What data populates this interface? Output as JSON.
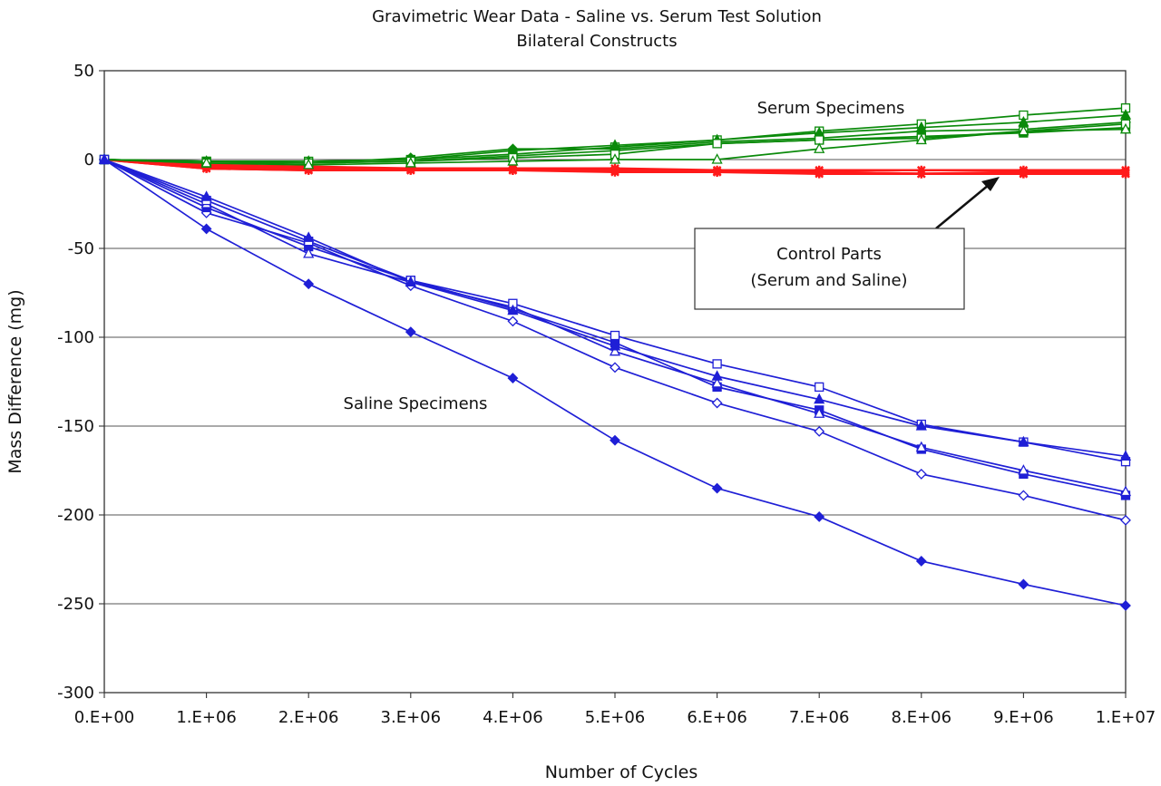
{
  "chart_data": {
    "type": "line",
    "title": "Gravimetric Wear Data - Saline vs. Serum Test Solution",
    "subtitle": "Bilateral Constructs",
    "xlabel": "Number of Cycles",
    "ylabel": "Mass Difference (mg)",
    "x": [
      0,
      1000000,
      2000000,
      3000000,
      4000000,
      5000000,
      6000000,
      7000000,
      8000000,
      9000000,
      10000000
    ],
    "xticks": [
      "0.E+00",
      "1.E+06",
      "2.E+06",
      "3.E+06",
      "4.E+06",
      "5.E+06",
      "6.E+06",
      "7.E+06",
      "8.E+06",
      "9.E+06",
      "1.E+07"
    ],
    "yticks": [
      "50",
      "0",
      "-50",
      "-100",
      "-150",
      "-200",
      "-250",
      "-300"
    ],
    "xlim": [
      0,
      10000000
    ],
    "ylim": [
      -300,
      50
    ],
    "grid": "horizontal",
    "annotations": {
      "serum": "Serum Specimens",
      "saline": "Saline Specimens",
      "control_line1": "Control Parts",
      "control_line2": "(Serum and Saline)"
    },
    "colors": {
      "saline": "#1f1fd6",
      "serum": "#0a8a0a",
      "control": "#ff1a1a"
    },
    "series": [
      {
        "group": "saline",
        "marker": "diamond-filled",
        "values": [
          0,
          -39,
          -70,
          -97,
          -123,
          -158,
          -185,
          -201,
          -226,
          -239,
          -251
        ]
      },
      {
        "group": "saline",
        "marker": "diamond-open",
        "values": [
          0,
          -30,
          -47,
          -71,
          -91,
          -117,
          -137,
          -153,
          -177,
          -189,
          -203
        ]
      },
      {
        "group": "saline",
        "marker": "square-filled",
        "values": [
          0,
          -27,
          -49,
          -68,
          -84,
          -103,
          -128,
          -141,
          -163,
          -177,
          -189
        ]
      },
      {
        "group": "saline",
        "marker": "triangle-open",
        "values": [
          0,
          -25,
          -53,
          -69,
          -83,
          -108,
          -126,
          -143,
          -162,
          -175,
          -187
        ]
      },
      {
        "group": "saline",
        "marker": "square-open",
        "values": [
          0,
          -23,
          -46,
          -68,
          -81,
          -99,
          -115,
          -128,
          -149,
          -159,
          -170
        ]
      },
      {
        "group": "saline",
        "marker": "triangle-filled",
        "values": [
          0,
          -21,
          -44,
          -69,
          -85,
          -105,
          -122,
          -135,
          -150,
          -159,
          -167
        ]
      },
      {
        "group": "serum",
        "marker": "square-open",
        "values": [
          0,
          -1,
          -1,
          0,
          3,
          7,
          11,
          16,
          20,
          25,
          29
        ]
      },
      {
        "group": "serum",
        "marker": "triangle-filled",
        "values": [
          0,
          -1,
          -1,
          0,
          5,
          8,
          11,
          15,
          18,
          21,
          25
        ]
      },
      {
        "group": "serum",
        "marker": "diamond-filled",
        "values": [
          0,
          -1,
          -2,
          1,
          6,
          6,
          10,
          12,
          16,
          17,
          21
        ]
      },
      {
        "group": "serum",
        "marker": "square-filled",
        "values": [
          0,
          -1,
          -2,
          -1,
          2,
          5,
          9,
          11,
          13,
          15,
          18
        ]
      },
      {
        "group": "serum",
        "marker": "square-open",
        "values": [
          0,
          -2,
          -2,
          -1,
          1,
          3,
          9,
          11,
          12,
          16,
          20
        ]
      },
      {
        "group": "serum",
        "marker": "triangle-open",
        "values": [
          0,
          -2,
          -3,
          -2,
          -1,
          0,
          0,
          6,
          11,
          16,
          17
        ]
      },
      {
        "group": "control",
        "marker": "star",
        "values": [
          0,
          -4,
          -5,
          -5,
          -5,
          -5,
          -6,
          -6,
          -6,
          -6,
          -6
        ]
      },
      {
        "group": "control",
        "marker": "star",
        "values": [
          0,
          -5,
          -6,
          -6,
          -6,
          -7,
          -7,
          -7,
          -8,
          -8,
          -8
        ]
      },
      {
        "group": "control",
        "marker": "star",
        "values": [
          0,
          -3,
          -4,
          -5,
          -6,
          -6,
          -7,
          -7,
          -8,
          -7,
          -7
        ]
      },
      {
        "group": "control",
        "marker": "star",
        "values": [
          0,
          -5,
          -6,
          -6,
          -6,
          -6,
          -7,
          -8,
          -8,
          -8,
          -8
        ]
      }
    ]
  }
}
